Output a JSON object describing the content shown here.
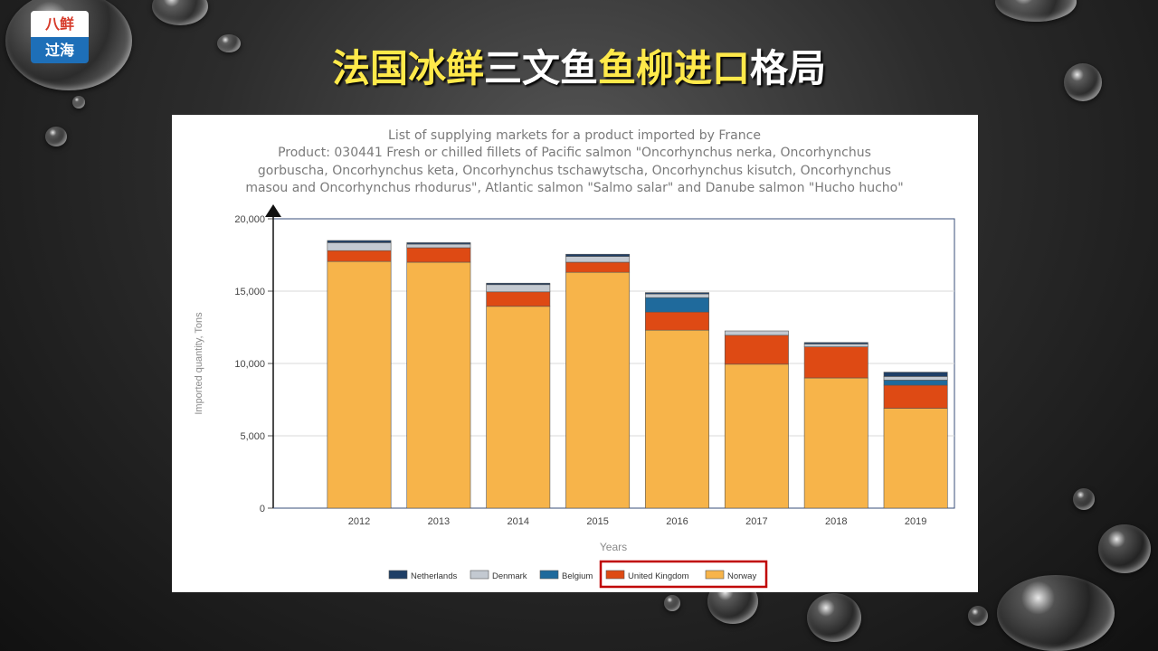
{
  "logo": {
    "top_text": "八鲜",
    "bottom_text": "过海"
  },
  "slide_title": {
    "part1": "法国冰鲜",
    "part2": "三文鱼",
    "part3": "鱼柳进口",
    "part4": "格局"
  },
  "colors": {
    "netherlands": "#1f3f66",
    "denmark": "#c3c9d1",
    "belgium": "#1f6a9c",
    "united_kingdom": "#de4a14",
    "norway": "#f7b44a",
    "highlight_box": "#c00000"
  },
  "chart_data": {
    "type": "bar",
    "stacked": true,
    "title_lines": [
      "List of supplying markets for a product imported by France",
      "Product: 030441 Fresh or chilled fillets of Pacific salmon \"Oncorhynchus nerka, Oncorhynchus",
      "gorbuscha, Oncorhynchus keta, Oncorhynchus tschawytscha, Oncorhynchus kisutch, Oncorhynchus",
      "masou and Oncorhynchus rhodurus\", Atlantic salmon \"Salmo salar\" and Danube salmon \"Hucho hucho\""
    ],
    "xlabel": "Years",
    "ylabel": "Imported quantity, Tons",
    "ylim": [
      0,
      20000
    ],
    "yticks": [
      "0",
      "5,000",
      "10,000",
      "15,000",
      "20,000"
    ],
    "categories": [
      "2012",
      "2013",
      "2014",
      "2015",
      "2016",
      "2017",
      "2018",
      "2019"
    ],
    "series": [
      {
        "name": "Norway",
        "values": [
          17050,
          17000,
          13950,
          16300,
          12300,
          9950,
          9000,
          6900
        ]
      },
      {
        "name": "United Kingdom",
        "values": [
          750,
          1000,
          1000,
          700,
          1250,
          2000,
          2150,
          1600
        ]
      },
      {
        "name": "Belgium",
        "values": [
          0,
          0,
          0,
          0,
          1000,
          0,
          0,
          350
        ]
      },
      {
        "name": "Denmark",
        "values": [
          550,
          250,
          500,
          400,
          250,
          300,
          200,
          250
        ]
      },
      {
        "name": "Netherlands",
        "values": [
          150,
          100,
          100,
          150,
          100,
          0,
          100,
          300
        ]
      }
    ],
    "legend_order": [
      "Netherlands",
      "Denmark",
      "Belgium",
      "United Kingdom",
      "Norway"
    ],
    "legend_placement": "bottom",
    "grid": true
  }
}
